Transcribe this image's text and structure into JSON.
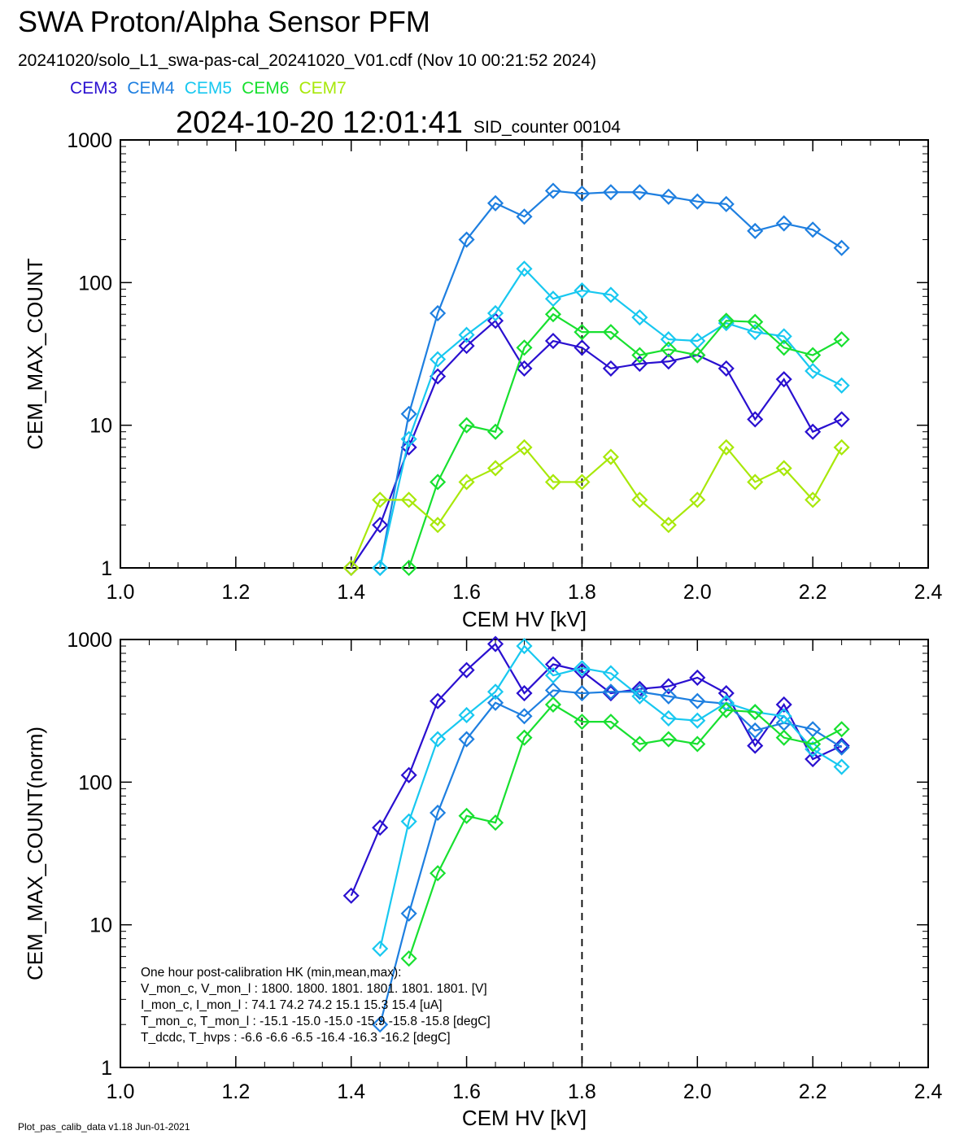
{
  "header": {
    "title": "SWA Proton/Alpha Sensor PFM",
    "subtitle": "20241020/solo_L1_swa-pas-cal_20241020_V01.cdf  (Nov 10 00:21:52 2024)",
    "timestamp": "2024-10-20 12:01:41",
    "sid_counter": "SID_counter 00104"
  },
  "legend": [
    {
      "label": "CEM3",
      "color": "#2a10d0"
    },
    {
      "label": "CEM4",
      "color": "#1e7fe0"
    },
    {
      "label": "CEM5",
      "color": "#18c8f0"
    },
    {
      "label": "CEM6",
      "color": "#18e030"
    },
    {
      "label": "CEM7",
      "color": "#a8e80a"
    }
  ],
  "footer": "Plot_pas_calib_data v1.18 Jun-01-2021",
  "hk_box": {
    "lines": [
      "One hour post-calibration HK (min,mean,max):",
      "V_mon_c, V_mon_l :   1800.  1800.  1801.      1801.  1801.  1801.  [V]",
      "I_mon_c,  I_mon_l :     74.1   74.2   74.2        15.1   15.3   15.4  [uA]",
      "T_mon_c, T_mon_l :   -15.1  -15.0  -15.0        -15.9  -15.8  -15.8  [degC]",
      "T_dcdc,    T_hvps :      -6.6   -6.6   -6.5        -16.4  -16.3  -16.2  [degC]"
    ]
  },
  "chart_data": [
    {
      "type": "line",
      "xlabel": "CEM HV [kV]",
      "ylabel": "CEM_MAX_COUNT",
      "xlim": [
        1.0,
        2.4
      ],
      "ylim": [
        1,
        1000
      ],
      "yscale": "log",
      "xticks": [
        "1.0",
        "1.2",
        "1.4",
        "1.6",
        "1.8",
        "2.0",
        "2.2",
        "2.4"
      ],
      "yticks": [
        {
          "value": 1,
          "label": "1"
        },
        {
          "value": 10,
          "label": "10"
        },
        {
          "value": 100,
          "label": "100"
        },
        {
          "value": 1000,
          "label": "1000"
        }
      ],
      "vline": 1.8,
      "marker": "diamond",
      "series": [
        {
          "name": "CEM3",
          "color": "#2a10d0",
          "x": [
            1.4,
            1.45,
            1.5,
            1.55,
            1.6,
            1.65,
            1.7,
            1.75,
            1.8,
            1.85,
            1.9,
            1.95,
            2.0,
            2.05,
            2.1,
            2.15,
            2.2,
            2.25
          ],
          "y": [
            1,
            2,
            7,
            22,
            36,
            54,
            25,
            39,
            35,
            25,
            27,
            28,
            31,
            25,
            11,
            21,
            9,
            11
          ]
        },
        {
          "name": "CEM4",
          "color": "#1e7fe0",
          "x": [
            1.45,
            1.5,
            1.55,
            1.6,
            1.65,
            1.7,
            1.75,
            1.8,
            1.85,
            1.9,
            1.95,
            2.0,
            2.05,
            2.1,
            2.15,
            2.2,
            2.25
          ],
          "y": [
            1,
            12,
            61,
            200,
            360,
            290,
            440,
            420,
            430,
            430,
            400,
            370,
            355,
            230,
            260,
            235,
            175
          ]
        },
        {
          "name": "CEM5",
          "color": "#18c8f0",
          "x": [
            1.45,
            1.5,
            1.55,
            1.6,
            1.65,
            1.7,
            1.75,
            1.8,
            1.85,
            1.9,
            1.95,
            2.0,
            2.05,
            2.1,
            2.15,
            2.2,
            2.25
          ],
          "y": [
            1,
            8,
            29,
            43,
            61,
            125,
            77,
            88,
            82,
            57,
            40,
            39,
            52,
            45,
            42,
            24,
            19
          ]
        },
        {
          "name": "CEM6",
          "color": "#18e030",
          "x": [
            1.5,
            1.55,
            1.6,
            1.65,
            1.7,
            1.75,
            1.8,
            1.85,
            1.9,
            1.95,
            2.0,
            2.05,
            2.1,
            2.15,
            2.2,
            2.25
          ],
          "y": [
            1,
            4,
            10,
            9,
            35,
            60,
            45,
            45,
            31,
            34,
            31,
            54,
            53,
            35,
            31,
            40
          ]
        },
        {
          "name": "CEM7",
          "color": "#a8e80a",
          "x": [
            1.4,
            1.45,
            1.5,
            1.55,
            1.6,
            1.65,
            1.7,
            1.75,
            1.8,
            1.85,
            1.9,
            1.95,
            2.0,
            2.05,
            2.1,
            2.15,
            2.2,
            2.25
          ],
          "y": [
            1,
            3,
            3,
            2,
            4,
            5,
            7,
            4,
            4,
            6,
            3,
            2,
            3,
            7,
            4,
            5,
            3,
            7
          ]
        }
      ]
    },
    {
      "type": "line",
      "xlabel": "CEM HV [kV]",
      "ylabel": "CEM_MAX_COUNT(norm)",
      "xlim": [
        1.0,
        2.4
      ],
      "ylim": [
        1,
        1000
      ],
      "yscale": "log",
      "xticks": [
        "1.0",
        "1.2",
        "1.4",
        "1.6",
        "1.8",
        "2.0",
        "2.2",
        "2.4"
      ],
      "yticks": [
        {
          "value": 1,
          "label": "1"
        },
        {
          "value": 10,
          "label": "10"
        },
        {
          "value": 100,
          "label": "100"
        },
        {
          "value": 1000,
          "label": "1000"
        }
      ],
      "vline": 1.8,
      "marker": "diamond",
      "series": [
        {
          "name": "CEM3",
          "color": "#2a10d0",
          "x": [
            1.4,
            1.45,
            1.5,
            1.55,
            1.6,
            1.65,
            1.7,
            1.75,
            1.8,
            1.85,
            1.9,
            1.95,
            2.0,
            2.05,
            2.1,
            2.15,
            2.2,
            2.25
          ],
          "y": [
            16,
            48,
            112,
            370,
            610,
            930,
            420,
            670,
            600,
            420,
            450,
            470,
            540,
            420,
            180,
            350,
            145,
            180
          ]
        },
        {
          "name": "CEM4",
          "color": "#1e7fe0",
          "x": [
            1.45,
            1.5,
            1.55,
            1.6,
            1.65,
            1.7,
            1.75,
            1.8,
            1.85,
            1.9,
            1.95,
            2.0,
            2.05,
            2.1,
            2.15,
            2.2,
            2.25
          ],
          "y": [
            2,
            12,
            61,
            200,
            360,
            290,
            440,
            420,
            430,
            430,
            400,
            370,
            355,
            230,
            260,
            235,
            175
          ]
        },
        {
          "name": "CEM5",
          "color": "#18c8f0",
          "x": [
            1.45,
            1.5,
            1.55,
            1.6,
            1.65,
            1.7,
            1.75,
            1.8,
            1.85,
            1.9,
            1.95,
            2.0,
            2.05,
            2.1,
            2.15,
            2.2,
            2.25
          ],
          "y": [
            6.8,
            53,
            200,
            295,
            430,
            900,
            560,
            630,
            580,
            400,
            280,
            270,
            360,
            310,
            290,
            170,
            128
          ]
        },
        {
          "name": "CEM6",
          "color": "#18e030",
          "x": [
            1.5,
            1.55,
            1.6,
            1.65,
            1.7,
            1.75,
            1.8,
            1.85,
            1.9,
            1.95,
            2.0,
            2.05,
            2.1,
            2.15,
            2.2,
            2.25
          ],
          "y": [
            5.8,
            23,
            58,
            52,
            205,
            350,
            265,
            265,
            185,
            200,
            185,
            320,
            310,
            205,
            185,
            235
          ]
        }
      ]
    }
  ]
}
